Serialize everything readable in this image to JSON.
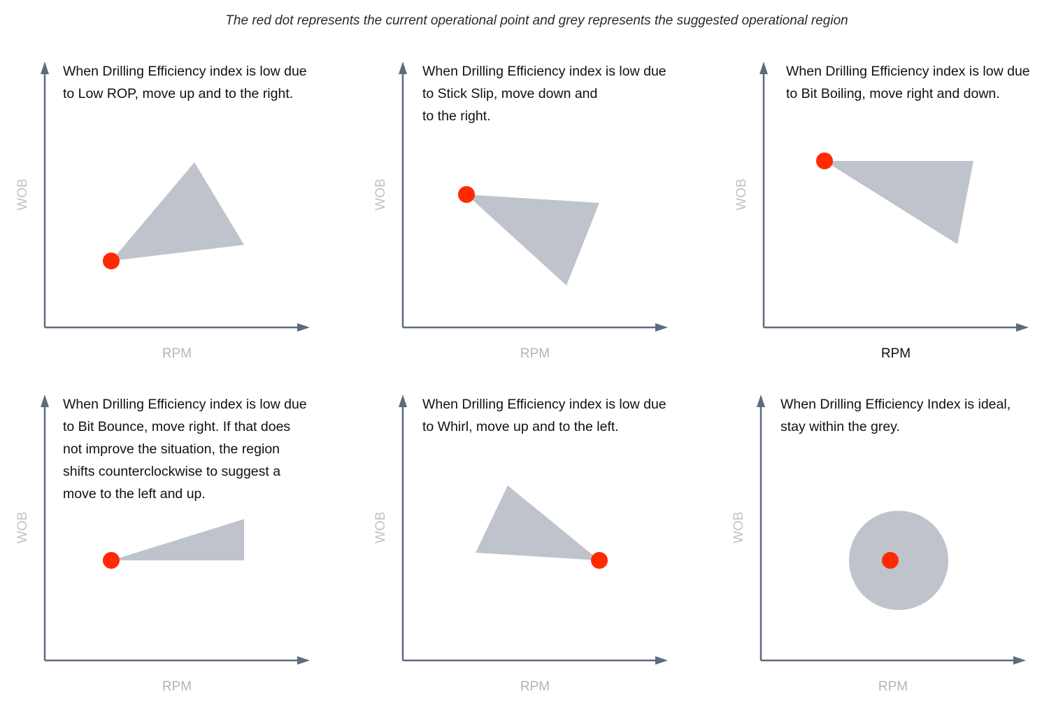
{
  "caption": "The red dot represents the current operational point and grey represents the suggested operational region",
  "colors": {
    "axis": "#5e6b7d",
    "region": "#bfc4cc",
    "dot": "#ff2a00"
  },
  "panels": [
    {
      "id": "low-rop",
      "text_lines": [
        "When Drilling Efficiency index is low due",
        "to Low ROP, move up and to the right."
      ],
      "y_label": "WOB",
      "x_label": "RPM",
      "region_shape": "triangle",
      "suggested_direction": "up-right"
    },
    {
      "id": "stick-slip",
      "text_lines": [
        "When Drilling Efficiency index is low due",
        "to Stick Slip, move down and",
        "to the right."
      ],
      "y_label": "WOB",
      "x_label": "RPM",
      "region_shape": "triangle",
      "suggested_direction": "down-right"
    },
    {
      "id": "bit-boiling",
      "text_lines": [
        "When Drilling Efficiency index is low due",
        "to Bit Boiling, move right and down."
      ],
      "y_label": "WOB",
      "x_label": "RPM",
      "region_shape": "triangle",
      "suggested_direction": "right-down"
    },
    {
      "id": "bit-bounce",
      "text_lines": [
        "When Drilling Efficiency index is low due",
        "to Bit Bounce, move right. If that does",
        "not improve the situation, the region",
        "shifts counterclockwise to suggest a",
        "move to the left and up."
      ],
      "y_label": "WOB",
      "x_label": "RPM",
      "region_shape": "triangle",
      "suggested_direction": "right"
    },
    {
      "id": "whirl",
      "text_lines": [
        "When Drilling Efficiency index is low due",
        "to Whirl, move up and to the left."
      ],
      "y_label": "WOB",
      "x_label": "RPM",
      "region_shape": "triangle",
      "suggested_direction": "up-left"
    },
    {
      "id": "ideal",
      "text_lines": [
        "When Drilling Efficiency Index is ideal,",
        "stay within the grey."
      ],
      "y_label": "WOB",
      "x_label": "RPM",
      "region_shape": "circle",
      "suggested_direction": "stay"
    }
  ]
}
